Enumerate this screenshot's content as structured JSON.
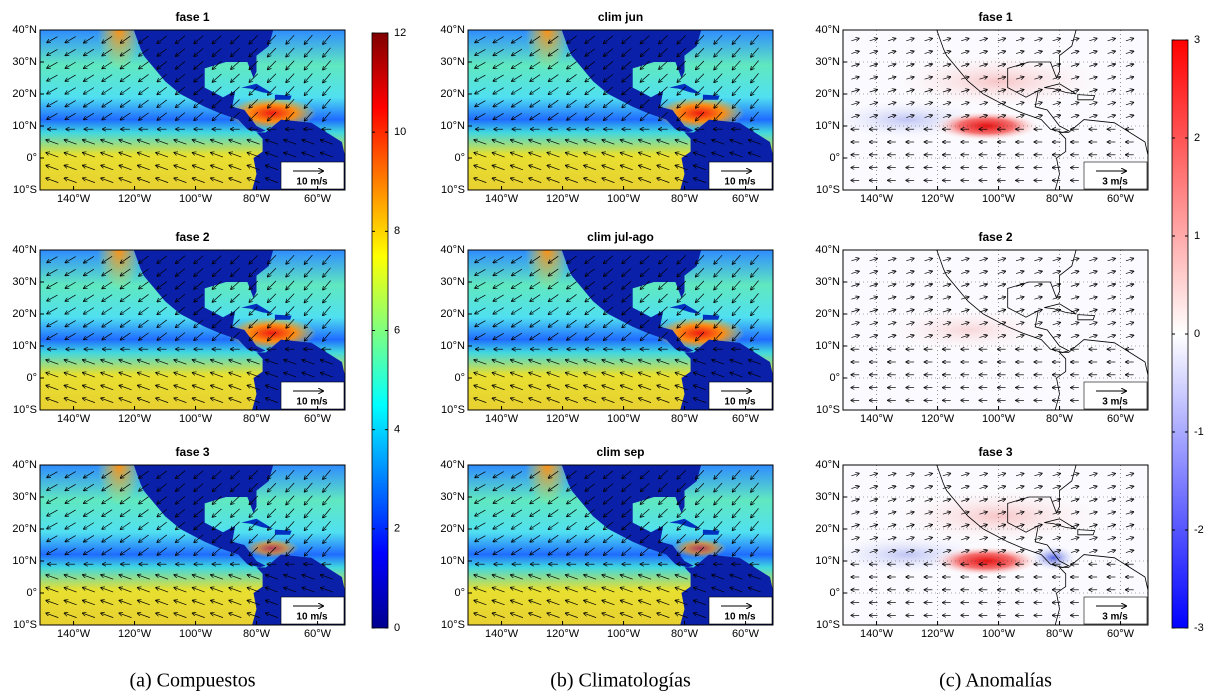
{
  "figure": {
    "lat_range": [
      -10,
      40
    ],
    "lon_range": [
      -151,
      -51
    ],
    "lat_ticks": [
      {
        "value": 40,
        "label": "40°N"
      },
      {
        "value": 30,
        "label": "30°N"
      },
      {
        "value": 20,
        "label": "20°N"
      },
      {
        "value": 10,
        "label": "10°N"
      },
      {
        "value": 0,
        "label": "0°"
      },
      {
        "value": -10,
        "label": "10°S"
      }
    ],
    "lon_ticks": [
      {
        "value": -140,
        "label": "140°W"
      },
      {
        "value": -120,
        "label": "120°W"
      },
      {
        "value": -100,
        "label": "100°W"
      },
      {
        "value": -80,
        "label": "80°W"
      },
      {
        "value": -60,
        "label": "60°W"
      }
    ],
    "columns": [
      {
        "caption": "(a) Compuestos",
        "panels": [
          {
            "title": "fase 1",
            "scale_label": "10 m/s"
          },
          {
            "title": "fase 2",
            "scale_label": "10 m/s"
          },
          {
            "title": "fase 3",
            "scale_label": "10 m/s"
          }
        ],
        "colorbar": {
          "range": [
            0,
            12
          ],
          "ticks": [
            0,
            2,
            4,
            6,
            8,
            10,
            12
          ]
        }
      },
      {
        "caption": "(b) Climatologías",
        "panels": [
          {
            "title": "clim jun",
            "scale_label": "10 m/s"
          },
          {
            "title": "clim jul-ago",
            "scale_label": "10 m/s"
          },
          {
            "title": "clim sep",
            "scale_label": "10 m/s"
          }
        ]
      },
      {
        "caption": "(c) Anomalías",
        "panels": [
          {
            "title": "fase 1",
            "scale_label": "3 m/s"
          },
          {
            "title": "fase 2",
            "scale_label": "3 m/s"
          },
          {
            "title": "fase 3",
            "scale_label": "3 m/s"
          }
        ],
        "colorbar": {
          "range": [
            -3,
            3
          ],
          "ticks": [
            -3,
            -2,
            -1,
            0,
            1,
            2,
            3
          ]
        }
      }
    ]
  }
}
